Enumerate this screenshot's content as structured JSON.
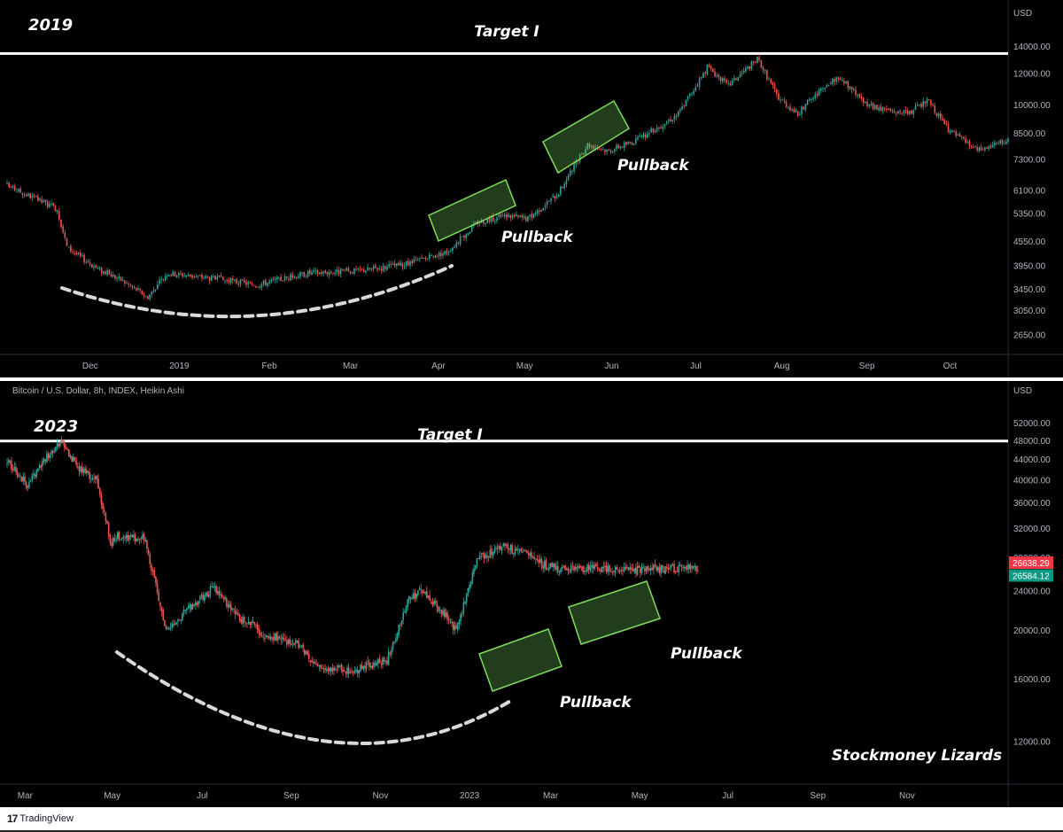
{
  "chart_data": [
    {
      "type": "candlestick",
      "title": "2019",
      "ylabel": "USD",
      "ylim": [
        2400,
        14600
      ],
      "scale": "log",
      "y_ticks": [
        14000,
        12000,
        10000,
        8500,
        7300,
        6100,
        5350,
        4550,
        3950,
        3450,
        3050,
        2650
      ],
      "y_tick_labels": [
        "14000.00",
        "12000.00",
        "10000.00",
        "8500.00",
        "7300.00",
        "6100.00",
        "5350.00",
        "4550.00",
        "3950.00",
        "3450.00",
        "3050.00",
        "2650.00"
      ],
      "x_tick_labels": [
        "Dec",
        "2019",
        "Feb",
        "Mar",
        "Apr",
        "May",
        "Jun",
        "Jul",
        "Aug",
        "Sep",
        "Oct"
      ],
      "target_level": 13500,
      "series": [
        {
          "x": [
            0,
            0.05,
            0.06,
            0.09,
            0.11,
            0.13,
            0.14,
            0.16,
            0.2,
            0.25,
            0.3,
            0.35,
            0.4,
            0.44,
            0.47,
            0.5,
            0.52,
            0.55,
            0.58,
            0.6,
            0.63,
            0.67,
            0.7,
            0.72,
            0.75,
            0.77,
            0.79,
            0.8,
            0.83,
            0.86,
            0.9,
            0.92,
            0.94,
            0.97,
            1.0
          ],
          "values": [
            6300,
            5500,
            4400,
            3900,
            3700,
            3450,
            3300,
            3800,
            3700,
            3550,
            3800,
            3850,
            4000,
            4300,
            5100,
            5300,
            5200,
            6000,
            8000,
            7700,
            8200,
            9500,
            12500,
            11200,
            13100,
            10500,
            9500,
            10200,
            11800,
            10000,
            9500,
            10300,
            8700,
            7700,
            8200
          ]
        }
      ],
      "annotations": [
        "Target I",
        "Pullback",
        "Pullback"
      ]
    },
    {
      "type": "candlestick",
      "title": "2023",
      "subtitle": "Bitcoin / U.S. Dollar, 8h, INDEX, Heikin Ashi",
      "ylabel": "USD",
      "ylim": [
        10000,
        56000
      ],
      "scale": "log",
      "y_ticks": [
        52000,
        48000,
        44000,
        40000,
        36000,
        32000,
        28000,
        24000,
        20000,
        16000,
        12000
      ],
      "y_tick_labels": [
        "52000.00",
        "48000.00",
        "44000.00",
        "40000.00",
        "36000.00",
        "32000.00",
        "28000.00",
        "24000.00",
        "20000.00",
        "16000.00",
        "12000.00"
      ],
      "x_tick_labels": [
        "Mar",
        "May",
        "Jul",
        "Sep",
        "Nov",
        "2023",
        "Mar",
        "May",
        "Jul",
        "Sep",
        "Nov"
      ],
      "target_level": 48000,
      "price_labels": [
        {
          "text": "26638.29",
          "value": 26638.29,
          "color": "#f23645"
        },
        {
          "text": "26584.12",
          "value": 26584.12,
          "color": "#089981"
        }
      ],
      "series": [
        {
          "x": [
            0,
            0.03,
            0.06,
            0.08,
            0.1,
            0.13,
            0.15,
            0.16,
            0.2,
            0.23,
            0.26,
            0.3,
            0.34,
            0.38,
            0.42,
            0.45,
            0.5,
            0.55,
            0.58,
            0.6,
            0.63,
            0.65,
            0.68,
            0.72,
            0.75,
            0.78,
            0.8,
            0.82
          ],
          "values": [
            44000,
            39000,
            45000,
            48000,
            43000,
            40000,
            30000,
            31000,
            30500,
            20000,
            22000,
            24500,
            21000,
            19500,
            19000,
            16800,
            16700,
            17500,
            23000,
            24000,
            22000,
            20000,
            28000,
            29500,
            28500,
            27000,
            26700,
            26600
          ]
        }
      ],
      "annotations": [
        "Target I",
        "Pullback",
        "Pullback",
        "Stockmoney Lizards"
      ]
    }
  ],
  "footer": {
    "brand": "TradingView",
    "brand_mark": "17"
  }
}
